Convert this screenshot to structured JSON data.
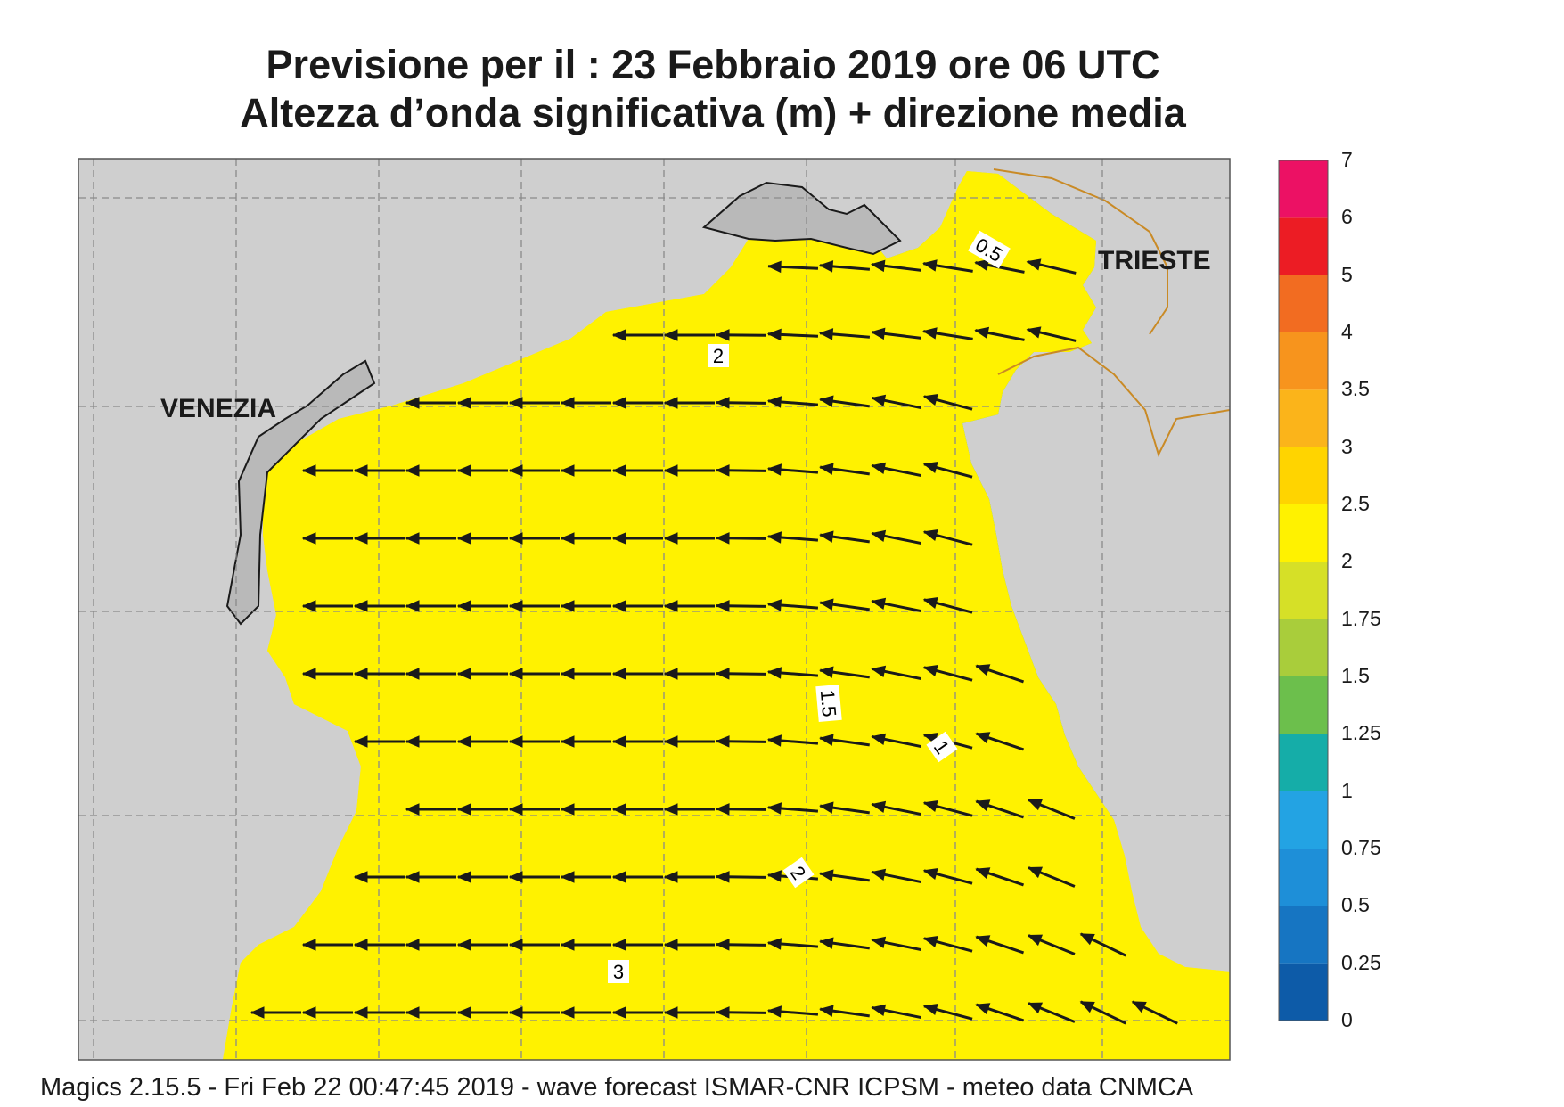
{
  "title": {
    "line1": "Previsione per il  :  23  Febbraio 2019   ore 06 UTC",
    "line2": "Altezza d’onda significativa (m) + direzione media"
  },
  "footer": "Magics 2.15.5 - Fri Feb 22 00:47:45 2019 - wave forecast  ISMAR-CNR  ICPSM - meteo data   CNMCA",
  "places": {
    "venezia": "VENEZIA",
    "trieste": "TRIESTE"
  },
  "contour_labels": [
    "0.5",
    "2",
    "1.5",
    "1",
    "2",
    "3"
  ],
  "colorbar": {
    "levels": [
      "0",
      "0.25",
      "0.5",
      "0.75",
      "1",
      "1.25",
      "1.5",
      "1.75",
      "2",
      "2.5",
      "3",
      "3.5",
      "4",
      "5",
      "6",
      "7"
    ],
    "colors": [
      "#0d5ba8",
      "#1675c2",
      "#1e8fd8",
      "#23a3e3",
      "#15ada8",
      "#6cbf4c",
      "#a9cd3b",
      "#d6e027",
      "#fff200",
      "#ffd400",
      "#fbb41a",
      "#f7941d",
      "#f26c21",
      "#ec1c24",
      "#ec1164"
    ]
  },
  "colors": {
    "land": "#cfcfcf",
    "border": "#c98a25",
    "arrow": "#1a1a1a"
  }
}
